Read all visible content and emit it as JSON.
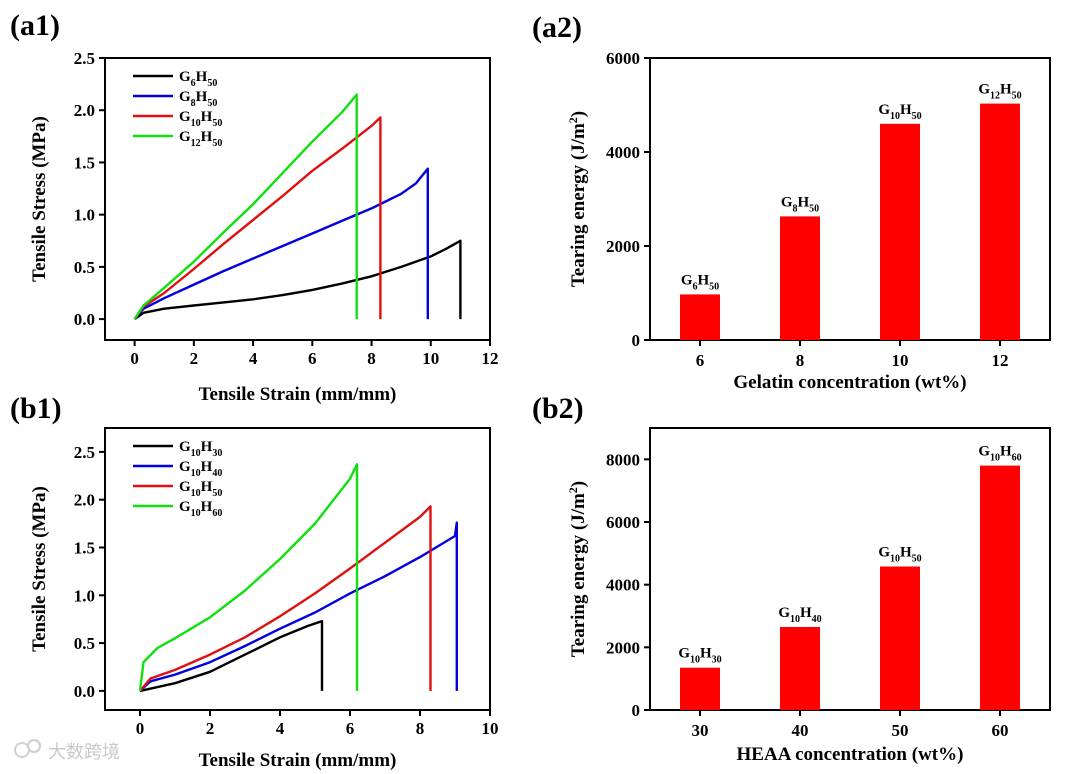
{
  "watermark": "大数跨境",
  "chart_data": [
    {
      "id": "a1",
      "panel": "(a1)",
      "type": "line",
      "xlabel": "Tensile Strain (mm/mm)",
      "ylabel": "Tensile Stress (MPa)",
      "xlim": [
        -1,
        12
      ],
      "ylim": [
        -0.2,
        2.5
      ],
      "xticks": [
        0,
        2,
        4,
        6,
        8,
        10,
        12
      ],
      "yticks": [
        0.0,
        0.5,
        1.0,
        1.5,
        2.0,
        2.5
      ],
      "legend_position": "top-left",
      "series": [
        {
          "name": "G6H50",
          "base": "G",
          "sub1": "6",
          "mid": "H",
          "sub2": "50",
          "color": "#000000",
          "points": [
            [
              0,
              0
            ],
            [
              0.3,
              0.06
            ],
            [
              1,
              0.1
            ],
            [
              2,
              0.13
            ],
            [
              3,
              0.16
            ],
            [
              4,
              0.19
            ],
            [
              5,
              0.23
            ],
            [
              6,
              0.28
            ],
            [
              7,
              0.34
            ],
            [
              8,
              0.41
            ],
            [
              9,
              0.5
            ],
            [
              10,
              0.6
            ],
            [
              10.5,
              0.67
            ],
            [
              11,
              0.75
            ],
            [
              11,
              0
            ]
          ]
        },
        {
          "name": "G8H50",
          "base": "G",
          "sub1": "8",
          "mid": "H",
          "sub2": "50",
          "color": "#0000e0",
          "points": [
            [
              0,
              0
            ],
            [
              0.3,
              0.1
            ],
            [
              1,
              0.2
            ],
            [
              2,
              0.33
            ],
            [
              3,
              0.46
            ],
            [
              4,
              0.58
            ],
            [
              5,
              0.7
            ],
            [
              6,
              0.82
            ],
            [
              7,
              0.94
            ],
            [
              8,
              1.06
            ],
            [
              9,
              1.2
            ],
            [
              9.5,
              1.3
            ],
            [
              9.9,
              1.44
            ],
            [
              9.9,
              0
            ]
          ]
        },
        {
          "name": "G10H50",
          "base": "G",
          "sub1": "10",
          "mid": "H",
          "sub2": "50",
          "color": "#e01010",
          "points": [
            [
              0,
              0
            ],
            [
              0.3,
              0.12
            ],
            [
              1,
              0.25
            ],
            [
              2,
              0.48
            ],
            [
              3,
              0.72
            ],
            [
              4,
              0.95
            ],
            [
              5,
              1.18
            ],
            [
              6,
              1.42
            ],
            [
              7,
              1.63
            ],
            [
              8,
              1.85
            ],
            [
              8.3,
              1.93
            ],
            [
              8.3,
              0
            ]
          ]
        },
        {
          "name": "G12H50",
          "base": "G",
          "sub1": "12",
          "mid": "H",
          "sub2": "50",
          "color": "#10e010",
          "points": [
            [
              0,
              0
            ],
            [
              0.3,
              0.13
            ],
            [
              1,
              0.3
            ],
            [
              2,
              0.55
            ],
            [
              3,
              0.83
            ],
            [
              4,
              1.1
            ],
            [
              5,
              1.4
            ],
            [
              6,
              1.7
            ],
            [
              7,
              1.98
            ],
            [
              7.5,
              2.15
            ],
            [
              7.5,
              0
            ]
          ]
        }
      ]
    },
    {
      "id": "a2",
      "panel": "(a2)",
      "type": "bar",
      "xlabel": "Gelatin concentration (wt%)",
      "ylabel": "Tearing energy (J/m2)",
      "ylabel_main": "Tearing energy (J/m",
      "ylabel_sup": "2",
      "ylabel_end": ")",
      "ylim": [
        0,
        6000
      ],
      "yticks": [
        0,
        2000,
        4000,
        6000
      ],
      "categories": [
        "6",
        "8",
        "10",
        "12"
      ],
      "values": [
        970,
        2630,
        4600,
        5030
      ],
      "bar_color": "#ff0000",
      "bar_labels": [
        {
          "base": "G",
          "sub1": "6",
          "mid": "H",
          "sub2": "50"
        },
        {
          "base": "G",
          "sub1": "8",
          "mid": "H",
          "sub2": "50"
        },
        {
          "base": "G",
          "sub1": "10",
          "mid": "H",
          "sub2": "50"
        },
        {
          "base": "G",
          "sub1": "12",
          "mid": "H",
          "sub2": "50"
        }
      ]
    },
    {
      "id": "b1",
      "panel": "(b1)",
      "type": "line",
      "xlabel": "Tensile Strain (mm/mm)",
      "ylabel": "Tensile Stress (MPa)",
      "xlim": [
        -1,
        10
      ],
      "ylim": [
        -0.2,
        2.75
      ],
      "xticks": [
        0,
        2,
        4,
        6,
        8,
        10
      ],
      "yticks": [
        0.0,
        0.5,
        1.0,
        1.5,
        2.0,
        2.5
      ],
      "legend_position": "top-left",
      "series": [
        {
          "name": "G10H30",
          "base": "G",
          "sub1": "10",
          "mid": "H",
          "sub2": "30",
          "color": "#000000",
          "points": [
            [
              0,
              0
            ],
            [
              0.5,
              0.04
            ],
            [
              1,
              0.08
            ],
            [
              2,
              0.2
            ],
            [
              3,
              0.38
            ],
            [
              4,
              0.56
            ],
            [
              4.8,
              0.68
            ],
            [
              5.2,
              0.73
            ],
            [
              5.2,
              0
            ]
          ]
        },
        {
          "name": "G10H40",
          "base": "G",
          "sub1": "10",
          "mid": "H",
          "sub2": "40",
          "color": "#0000e0",
          "points": [
            [
              0,
              0
            ],
            [
              0.3,
              0.1
            ],
            [
              1,
              0.17
            ],
            [
              2,
              0.3
            ],
            [
              3,
              0.47
            ],
            [
              4,
              0.65
            ],
            [
              5,
              0.82
            ],
            [
              6,
              1.02
            ],
            [
              7,
              1.2
            ],
            [
              8,
              1.4
            ],
            [
              9,
              1.62
            ],
            [
              9.05,
              1.76
            ],
            [
              9.05,
              0
            ]
          ]
        },
        {
          "name": "G10H50",
          "base": "G",
          "sub1": "10",
          "mid": "H",
          "sub2": "50",
          "color": "#e01010",
          "points": [
            [
              0,
              0
            ],
            [
              0.3,
              0.13
            ],
            [
              1,
              0.22
            ],
            [
              2,
              0.38
            ],
            [
              3,
              0.56
            ],
            [
              4,
              0.78
            ],
            [
              5,
              1.02
            ],
            [
              6,
              1.28
            ],
            [
              7,
              1.55
            ],
            [
              8,
              1.82
            ],
            [
              8.3,
              1.93
            ],
            [
              8.3,
              0
            ]
          ]
        },
        {
          "name": "G10H60",
          "base": "G",
          "sub1": "10",
          "mid": "H",
          "sub2": "60",
          "color": "#10e010",
          "points": [
            [
              0,
              0
            ],
            [
              0.1,
              0.3
            ],
            [
              0.5,
              0.45
            ],
            [
              1,
              0.55
            ],
            [
              2,
              0.77
            ],
            [
              3,
              1.05
            ],
            [
              4,
              1.38
            ],
            [
              5,
              1.75
            ],
            [
              6,
              2.22
            ],
            [
              6.2,
              2.37
            ],
            [
              6.2,
              0
            ]
          ]
        }
      ]
    },
    {
      "id": "b2",
      "panel": "(b2)",
      "type": "bar",
      "xlabel": "HEAA concentration (wt%)",
      "ylabel": "Tearing energy (J/m2)",
      "ylabel_main": "Tearing energy (J/m",
      "ylabel_sup": "2",
      "ylabel_end": ")",
      "ylim": [
        0,
        9000
      ],
      "yticks": [
        0,
        2000,
        4000,
        6000,
        8000
      ],
      "categories": [
        "30",
        "40",
        "50",
        "60"
      ],
      "values": [
        1350,
        2650,
        4580,
        7800
      ],
      "bar_color": "#ff0000",
      "bar_labels": [
        {
          "base": "G",
          "sub1": "10",
          "mid": "H",
          "sub2": "30"
        },
        {
          "base": "G",
          "sub1": "10",
          "mid": "H",
          "sub2": "40"
        },
        {
          "base": "G",
          "sub1": "10",
          "mid": "H",
          "sub2": "50"
        },
        {
          "base": "G",
          "sub1": "10",
          "mid": "H",
          "sub2": "60"
        }
      ]
    }
  ]
}
